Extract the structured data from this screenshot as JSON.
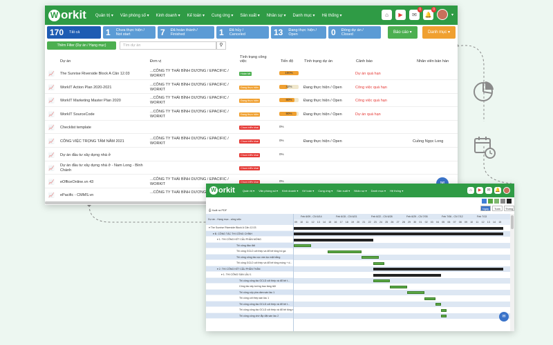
{
  "logo": "orkit",
  "nav": [
    "Quản trị ▾",
    "Văn phòng số ▾",
    "Kinh doanh ▾",
    "Kế toán ▾",
    "Cung ứng ▾",
    "Sản xuất ▾",
    "Nhân sự ▾",
    "Danh mục ▾",
    "Hệ thống ▾"
  ],
  "badges": {
    "mail": "0",
    "bell": "0"
  },
  "stats": [
    {
      "num": "170",
      "l1": "Tất cả",
      "l2": "",
      "color": "#1e5cb3"
    },
    {
      "num": "1",
      "l1": "Chưa thực hiện /",
      "l2": "Not start",
      "color": "#5b9bd5"
    },
    {
      "num": "7",
      "l1": "Đã hoàn thành /",
      "l2": "Finished",
      "color": "#5b9bd5"
    },
    {
      "num": "1",
      "l1": "Đã hủy /",
      "l2": "Canceled",
      "color": "#5b9bd5"
    },
    {
      "num": "13",
      "l1": "Đang thực hiện /",
      "l2": "Open",
      "color": "#5b9bd5"
    },
    {
      "num": "0",
      "l1": "Đóng dự án /",
      "l2": "Closed",
      "color": "#5b9bd5"
    }
  ],
  "report_btn": "Báo cáo ▾",
  "category_btn": "Danh mục ▾",
  "filter_btn": "Thêm Filter (Dự án / Hạng mục)",
  "search_placeholder": "Tìm dự án",
  "headers": {
    "project": "Dự án",
    "unit": "Đơn vị",
    "status1": "Tình trạng công",
    "status2": "việc",
    "progress": "Tiến độ",
    "proj_status": "Tình trạng dự án",
    "warning": "Cảnh báo",
    "staff": "Nhân viên bán hàn"
  },
  "rows": [
    {
      "name": "The Sunrise Riverside Block A Căn 12.03",
      "name2": "",
      "org1": "...CÔNG TY THÁI BÌNH DƯƠNG / EPACIFIC /",
      "org2": "WORKIT",
      "tag": "Hoàn tất",
      "tagc": "#4caf50",
      "prog": "100%",
      "pv": 1.0,
      "st": "",
      "warn": "Dự án quá hạn",
      "staff": ""
    },
    {
      "name": "WorkIT Action Plan 2020-2021",
      "name2": "",
      "org1": "...CÔNG TY THÁI BÌNH DƯƠNG / EPACIFIC /",
      "org2": "WORKIT",
      "tag": "Đang thực hiện",
      "tagc": "#f0a030",
      "prog": "42%",
      "pv": 0.42,
      "st": "Đang thực hiện / Open",
      "warn": "Công việc quá hạn",
      "staff": ""
    },
    {
      "name": "WorkIT Marketing Master Plan 2020",
      "name2": "",
      "org1": "...CÔNG TY THÁI BÌNH DƯƠNG / EPACIFIC /",
      "org2": "WORKIT",
      "tag": "Đang thực hiện",
      "tagc": "#f0a030",
      "prog": "80%",
      "pv": 0.8,
      "st": "Đang thực hiện / Open",
      "warn": "Công việc quá hạn",
      "staff": ""
    },
    {
      "name": "WorkIT SourceCode",
      "name2": "",
      "org1": "...CÔNG TY THÁI BÌNH DƯƠNG / EPACIFIC /",
      "org2": "WORKIT",
      "tag": "Đang thực hiện",
      "tagc": "#f0a030",
      "prog": "90%",
      "pv": 0.9,
      "st": "Đang thực hiện / Open",
      "warn": "Dự án quá hạn",
      "staff": ""
    },
    {
      "name": "Checklist template",
      "name2": "",
      "org1": "",
      "org2": "",
      "tag": "Chưa triển khai",
      "tagc": "#e53935",
      "prog": "0%",
      "pv": 0,
      "st": "",
      "warn": "",
      "staff": ""
    },
    {
      "name": "CÔNG VIỆC TRỌNG TÂM NĂM 2021",
      "name2": "",
      "org1": "...CÔNG TY THÁI BÌNH DƯƠNG / EPACIFIC /",
      "org2": "WORKIT",
      "tag": "Chưa triển khai",
      "tagc": "#e53935",
      "prog": "0%",
      "pv": 0,
      "st": "Đang thực hiện / Open",
      "warn": "",
      "staff": "Cuồng Ngọc Long"
    },
    {
      "name": "Dự án đầu tư xây dựng nhà ở",
      "name2": "",
      "org1": "",
      "org2": "",
      "tag": "Chưa triển khai",
      "tagc": "#e53935",
      "prog": "0%",
      "pv": 0,
      "st": "",
      "warn": "",
      "staff": ""
    },
    {
      "name": "Dự án đầu tư xây dựng nhà ở - Nam Long - Bình",
      "name2": "Chánh",
      "org1": "",
      "org2": "",
      "tag": "Chưa triển khai",
      "tagc": "#e53935",
      "prog": "",
      "pv": 0,
      "st": "",
      "warn": "",
      "staff": ""
    },
    {
      "name": "eOfficeOnline.vn 43",
      "name2": "",
      "org1": "...CÔNG TY THÁI BÌNH DƯƠNG / EPACIFIC /",
      "org2": "WORKIT",
      "tag": "Chưa triển khai",
      "tagc": "#e53935",
      "prog": "0%",
      "pv": 0,
      "st": "",
      "warn": "",
      "staff": ""
    },
    {
      "name": "ePacific - CMMS.vn",
      "name2": "",
      "org1": "...CÔNG TY THÁI BÌNH DƯƠNG / EPACIFIC /",
      "org2": "",
      "tag": "",
      "tagc": "#e53935",
      "prog": "",
      "pv": 0,
      "st": "",
      "warn": "",
      "staff": ""
    }
  ],
  "gantt": {
    "export": "Xuất ra PDF",
    "col_head": "Dự án - Hạng mục - công việc",
    "views": [
      "Ngày",
      "Tuần",
      "Tháng"
    ],
    "weeks": [
      "Feb 6/09 - CN 6/14",
      "Feb 6/15 - CN 6/21",
      "Feb 6/22 - CN 6/28",
      "Feb 6/29 - CN 7/05",
      "Feb 7/06 - CN 7/12",
      "Feb 7/13"
    ],
    "days": [
      "09",
      "10",
      "11",
      "12",
      "13",
      "14",
      "15",
      "16",
      "17",
      "18",
      "19",
      "20",
      "21",
      "22",
      "23",
      "24",
      "25",
      "26",
      "27",
      "28",
      "29",
      "30",
      "01",
      "02",
      "03",
      "04",
      "05",
      "06",
      "07",
      "08",
      "09",
      "10",
      "11",
      "12",
      "13",
      "14",
      "15"
    ],
    "legend": [
      "#3f7fd6",
      "#5aa845",
      "#7fb86e",
      "#888888",
      "#222222"
    ],
    "tasks": [
      {
        "l": "▾ The Sunrise Riverside Block A Căn 12.03",
        "ind": 0,
        "hl": false
      },
      {
        "l": "▾ B. CÔNG TÁC THI CÔNG CHÍNH",
        "ind": 6,
        "hl": true
      },
      {
        "l": "▾ 1. THI CÔNG KẾT CẤU PHẦN MÓNG",
        "ind": 12,
        "hl": false
      },
      {
        "l": "Thi công đào đất",
        "ind": 40,
        "hl": true
      },
      {
        "l": "Thi công GCLD cốt thép và đổ bê tông hố ga",
        "ind": 40,
        "hl": false
      },
      {
        "l": "Thi công công tác cọc ván lọc mặt bằng",
        "ind": 40,
        "hl": true
      },
      {
        "l": "Thi công GCLD cốt thép và đổ bê tông móng + d...",
        "ind": 40,
        "hl": false
      },
      {
        "l": "▾ 2. THI CÔNG KẾT CẤU PHẦN THÂN",
        "ind": 12,
        "hl": true
      },
      {
        "l": "▾ 1. THI CÔNG SÀN LẦU 1",
        "ind": 18,
        "hl": false
      },
      {
        "l": "Thi công công tác GCLD cốt thép và đổ bê t...",
        "ind": 44,
        "hl": true
      },
      {
        "l": "Công tác xây tường bao tầng trệt",
        "ind": 44,
        "hl": false
      },
      {
        "l": "Thi công cốp pha dầm sàn lầu 1",
        "ind": 44,
        "hl": true
      },
      {
        "l": "Thi công cốt thép sàn lầu 1",
        "ind": 44,
        "hl": false
      },
      {
        "l": "Thi công công tác GCLD cốt thép và đổ bê t...",
        "ind": 44,
        "hl": true
      },
      {
        "l": "Thi công công tác GCLD cốt thép và đổ bê tông sàn ...",
        "ind": 44,
        "hl": false
      },
      {
        "l": "Thi công công chờ lắp đặt sàn lầu 2",
        "ind": 44,
        "hl": true
      }
    ]
  }
}
